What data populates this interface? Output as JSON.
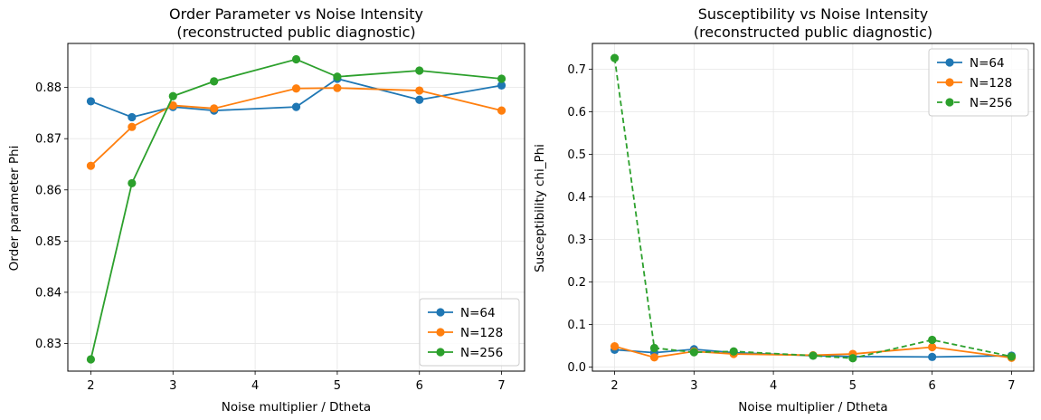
{
  "chart_data": [
    {
      "type": "line",
      "title": "Order Parameter vs Noise Intensity",
      "subtitle": "(reconstructed public diagnostic)",
      "xlabel": "Noise multiplier / Dtheta",
      "ylabel": "Order parameter Phi",
      "xlim": [
        1.72,
        7.28
      ],
      "ylim": [
        0.8246,
        0.8886
      ],
      "xticks": [
        2,
        3,
        4,
        5,
        6,
        7
      ],
      "yticks": [
        0.83,
        0.84,
        0.85,
        0.86,
        0.87,
        0.88
      ],
      "grid": true,
      "legend": "lower-right",
      "x": [
        2,
        2.5,
        3,
        3.5,
        4.5,
        5,
        6,
        7
      ],
      "series": [
        {
          "name": "N=64",
          "color": "#1f77b4",
          "dashed": false,
          "values": [
            0.8773,
            0.8742,
            0.8762,
            0.8755,
            0.8762,
            0.8817,
            0.8776,
            0.8804
          ]
        },
        {
          "name": "N=128",
          "color": "#ff7f0e",
          "dashed": false,
          "values": [
            0.8647,
            0.8723,
            0.8765,
            0.8759,
            0.8798,
            0.8799,
            0.8794,
            0.8755
          ]
        },
        {
          "name": "N=256",
          "color": "#2ca02c",
          "dashed": false,
          "values": [
            0.8269,
            0.8613,
            0.8783,
            0.8812,
            0.8855,
            0.8821,
            0.8833,
            0.8817
          ]
        }
      ]
    },
    {
      "type": "line",
      "title": "Susceptibility vs Noise Intensity",
      "subtitle": "(reconstructed public diagnostic)",
      "xlabel": "Noise multiplier / Dtheta",
      "ylabel": "Susceptibility chi_Phi",
      "xlim": [
        1.72,
        7.28
      ],
      "ylim": [
        -0.0093,
        0.7603
      ],
      "xticks": [
        2,
        3,
        4,
        5,
        6,
        7
      ],
      "yticks": [
        0.0,
        0.1,
        0.2,
        0.3,
        0.4,
        0.5,
        0.6,
        0.7
      ],
      "grid": true,
      "legend": "top-right",
      "x": [
        2,
        2.5,
        3,
        3.5,
        4.5,
        5,
        6,
        7
      ],
      "series": [
        {
          "name": "N=64",
          "color": "#1f77b4",
          "dashed": false,
          "values": [
            0.041,
            0.034,
            0.042,
            0.034,
            0.027,
            0.025,
            0.024,
            0.027
          ]
        },
        {
          "name": "N=128",
          "color": "#ff7f0e",
          "dashed": false,
          "values": [
            0.049,
            0.023,
            0.037,
            0.031,
            0.028,
            0.031,
            0.047,
            0.022
          ]
        },
        {
          "name": "N=256",
          "color": "#2ca02c",
          "dashed": true,
          "values": [
            0.726,
            0.045,
            0.035,
            0.037,
            0.027,
            0.021,
            0.064,
            0.025
          ]
        }
      ]
    }
  ]
}
